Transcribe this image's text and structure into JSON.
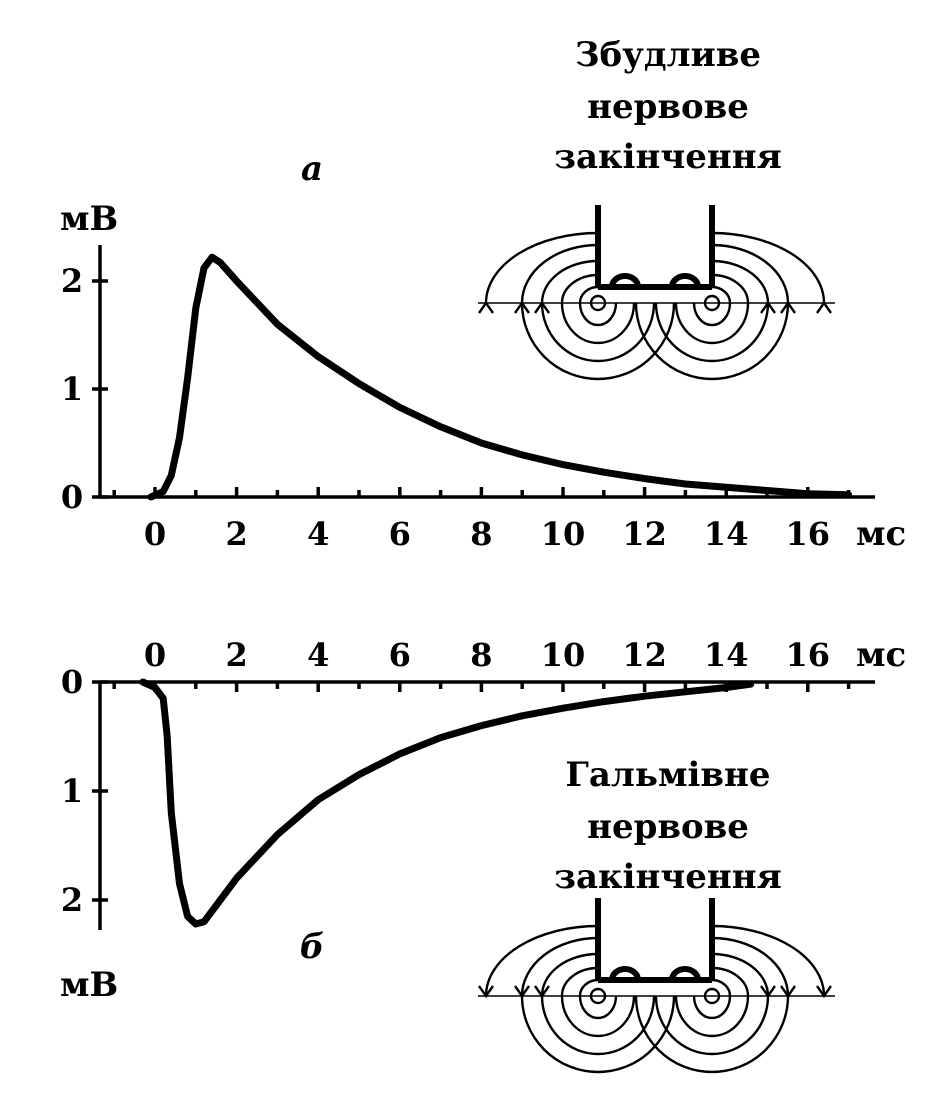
{
  "chart_data": [
    {
      "type": "line",
      "panel_label": "а",
      "title_lines": [
        "Збудливе",
        "нервове",
        "закінчення"
      ],
      "ylabel": "мВ",
      "xlabel": "мс",
      "x_ticks": [
        0,
        2,
        4,
        6,
        8,
        10,
        12,
        14,
        16
      ],
      "y_ticks": [
        0,
        1,
        2
      ],
      "xlim": [
        -1.3,
        17
      ],
      "ylim": [
        0,
        2.4
      ],
      "series": [
        {
          "x": [
            -0.1,
            0.2,
            0.4,
            0.6,
            0.8,
            1.0,
            1.2,
            1.4,
            1.6,
            2.0,
            2.5,
            3,
            4,
            5,
            6,
            7,
            8,
            9,
            10,
            11,
            12,
            13,
            14,
            15,
            16,
            17
          ],
          "y": [
            0.0,
            0.05,
            0.2,
            0.55,
            1.1,
            1.75,
            2.12,
            2.22,
            2.17,
            2.0,
            1.8,
            1.6,
            1.3,
            1.05,
            0.83,
            0.65,
            0.5,
            0.39,
            0.3,
            0.23,
            0.17,
            0.12,
            0.09,
            0.06,
            0.03,
            0.02
          ]
        }
      ]
    },
    {
      "type": "line",
      "panel_label": "б",
      "title_lines": [
        "Гальмівне",
        "нервове",
        "закінчення"
      ],
      "ylabel": "мВ",
      "xlabel": "мс",
      "x_ticks": [
        0,
        2,
        4,
        6,
        8,
        10,
        12,
        14,
        16
      ],
      "y_ticks": [
        0,
        1,
        2
      ],
      "xlim": [
        -1.3,
        17
      ],
      "ylim": [
        0,
        2.4
      ],
      "inverted": true,
      "series": [
        {
          "x": [
            -0.3,
            0.0,
            0.2,
            0.3,
            0.4,
            0.6,
            0.8,
            1.0,
            1.2,
            1.5,
            2.0,
            3,
            4,
            5,
            6,
            7,
            8,
            9,
            10,
            11,
            12,
            13,
            14,
            14.6
          ],
          "y": [
            0.0,
            0.05,
            0.15,
            0.5,
            1.2,
            1.85,
            2.15,
            2.22,
            2.2,
            2.05,
            1.8,
            1.4,
            1.08,
            0.85,
            0.66,
            0.51,
            0.4,
            0.31,
            0.24,
            0.18,
            0.13,
            0.09,
            0.05,
            0.02
          ]
        }
      ]
    }
  ]
}
